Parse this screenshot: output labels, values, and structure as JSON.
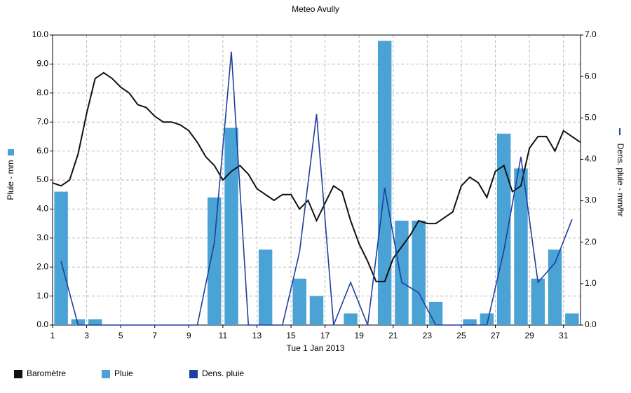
{
  "chart_data": {
    "type": "bar-line",
    "title": "Meteo  Avully",
    "xlabel": "Tue 1 Jan 2013",
    "ylabel": "Pluie - mm",
    "y2label": "Dens. pluie - mm/hr",
    "xlim": [
      1,
      32
    ],
    "xticks": [
      1,
      3,
      5,
      7,
      9,
      11,
      13,
      15,
      17,
      19,
      21,
      23,
      25,
      27,
      29,
      31
    ],
    "ylim": [
      0,
      10
    ],
    "yticks": [
      {
        "value": 0,
        "label": "0.0"
      },
      {
        "value": 1,
        "label": "1.0"
      },
      {
        "value": 2,
        "label": "2.0"
      },
      {
        "value": 3,
        "label": "3.0"
      },
      {
        "value": 4,
        "label": "4.0"
      },
      {
        "value": 5,
        "label": "5.0"
      },
      {
        "value": 6,
        "label": "6.0"
      },
      {
        "value": 7,
        "label": "7.0"
      },
      {
        "value": 8,
        "label": "8.0"
      },
      {
        "value": 9,
        "label": "9.0"
      },
      {
        "value": 10,
        "label": "10.0"
      }
    ],
    "y2lim": [
      0,
      7
    ],
    "y2ticks": [
      {
        "value": 0,
        "label": "0.0"
      },
      {
        "value": 1,
        "label": "1.0"
      },
      {
        "value": 2,
        "label": "2.0"
      },
      {
        "value": 3,
        "label": "3.0"
      },
      {
        "value": 4,
        "label": "4.0"
      },
      {
        "value": 5,
        "label": "5.0"
      },
      {
        "value": 6,
        "label": "6.0"
      },
      {
        "value": 7,
        "label": "7.0"
      }
    ],
    "grid": true,
    "series": [
      {
        "name": "Baromètre",
        "kind": "line",
        "color": "#111111",
        "x": [
          1,
          1.5,
          2,
          2.5,
          3,
          3.5,
          4,
          4.5,
          5,
          5.5,
          6,
          6.5,
          7,
          7.5,
          8,
          8.5,
          9,
          9.5,
          10,
          10.5,
          11,
          11.5,
          12,
          12.5,
          13,
          13.5,
          14,
          14.5,
          15,
          15.5,
          16,
          16.5,
          17,
          17.5,
          18,
          18.5,
          19,
          19.5,
          20,
          20.5,
          21,
          21.5,
          22,
          22.5,
          23,
          23.5,
          24,
          24.5,
          25,
          25.5,
          26,
          26.5,
          27,
          27.5,
          28,
          28.5,
          29,
          29.5,
          30,
          30.5,
          31,
          31.5,
          32
        ],
        "values": [
          4.9,
          4.8,
          5.0,
          5.9,
          7.3,
          8.5,
          8.7,
          8.5,
          8.2,
          8.0,
          7.6,
          7.5,
          7.2,
          7.0,
          7.0,
          6.9,
          6.7,
          6.3,
          5.8,
          5.5,
          5.0,
          5.3,
          5.5,
          5.2,
          4.7,
          4.5,
          4.3,
          4.5,
          4.5,
          4.0,
          4.3,
          3.6,
          4.2,
          4.8,
          4.6,
          3.6,
          2.8,
          2.2,
          1.5,
          1.5,
          2.3,
          2.7,
          3.1,
          3.6,
          3.5,
          3.5,
          3.7,
          3.9,
          4.8,
          5.1,
          4.9,
          4.4,
          5.3,
          5.5,
          4.6,
          4.8,
          6.1,
          6.5,
          6.5,
          6.0,
          6.7,
          6.5,
          6.3
        ]
      },
      {
        "name": "Pluie",
        "kind": "bar",
        "color": "#4aa3d4",
        "x": [
          1.5,
          2.5,
          3.5,
          4.5,
          5.5,
          6.5,
          7.5,
          8.5,
          9.5,
          10.5,
          11.5,
          12.5,
          13.5,
          14.5,
          15.5,
          16.5,
          17.5,
          18.5,
          19.5,
          20.5,
          21.5,
          22.5,
          23.5,
          24.5,
          25.5,
          26.5,
          27.5,
          28.5,
          29.5,
          30.5,
          31.5
        ],
        "values": [
          4.6,
          0.2,
          0.2,
          0,
          0,
          0,
          0,
          0,
          0,
          4.4,
          6.8,
          0,
          2.6,
          0,
          1.6,
          1.0,
          0,
          0.4,
          0,
          9.8,
          3.6,
          3.6,
          0.8,
          0,
          0.2,
          0.4,
          6.6,
          5.4,
          1.6,
          2.6,
          0.4
        ]
      },
      {
        "name": "Dens. pluie",
        "kind": "line",
        "axis": "y2",
        "color": "#1f3f9e",
        "x": [
          1.5,
          2.5,
          3.5,
          4.5,
          5.5,
          6.5,
          7.5,
          8.5,
          9.5,
          10.5,
          11.5,
          12.5,
          13.5,
          14.5,
          15.5,
          16.5,
          17.5,
          18.5,
          19.5,
          20.5,
          21.5,
          22.5,
          23.5,
          24.5,
          25.5,
          26.5,
          27.5,
          28.5,
          29.5,
          30.5,
          31.5
        ],
        "values": [
          1.54,
          0,
          0,
          0,
          0,
          0,
          0,
          0,
          0,
          2.0,
          6.6,
          0,
          0,
          0,
          1.76,
          5.09,
          0,
          1.03,
          0,
          3.31,
          1.03,
          0.78,
          0,
          0,
          0,
          0,
          1.8,
          4.06,
          1.03,
          1.5,
          2.55
        ]
      }
    ]
  }
}
